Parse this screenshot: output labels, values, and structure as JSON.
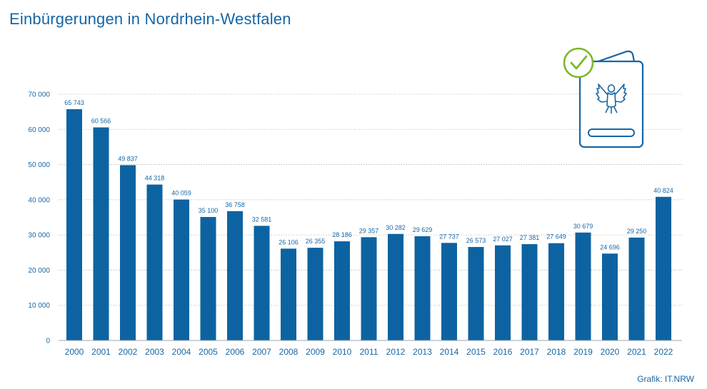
{
  "title": "Einbürgerungen in Nordrhein-Westfalen",
  "credit": "Grafik: IT.NRW",
  "colors": {
    "bar": "#0d63a1",
    "text": "#1666a5",
    "grid": "#b4b4b4",
    "icon": "#1666a5",
    "check": "#7ab929"
  },
  "icon": "passport-with-eagle-and-checkmark-icon",
  "chart_data": {
    "type": "bar",
    "title": "Einbürgerungen in Nordrhein-Westfalen",
    "xlabel": "",
    "ylabel": "",
    "ylim": [
      0,
      70000
    ],
    "yticks": [
      0,
      10000,
      20000,
      30000,
      40000,
      50000,
      60000,
      70000
    ],
    "ytick_labels": [
      "0",
      "10 000",
      "20 000",
      "30 000",
      "40 000",
      "50 000",
      "60 000",
      "70 000"
    ],
    "grid": "horizontal dotted",
    "categories": [
      "2000",
      "2001",
      "2002",
      "2003",
      "2004",
      "2005",
      "2006",
      "2007",
      "2008",
      "2009",
      "2010",
      "2011",
      "2012",
      "2013",
      "2014",
      "2015",
      "2016",
      "2017",
      "2018",
      "2019",
      "2020",
      "2021",
      "2022"
    ],
    "values": [
      65743,
      60566,
      49837,
      44318,
      40059,
      35100,
      36758,
      32581,
      26106,
      26355,
      28186,
      29357,
      30282,
      29629,
      27737,
      26573,
      27027,
      27381,
      27649,
      30679,
      24696,
      29250,
      40824
    ],
    "value_labels": [
      "65 743",
      "60 566",
      "49 837",
      "44 318",
      "40 059",
      "35 100",
      "36 758",
      "32 581",
      "26 106",
      "26 355",
      "28 186",
      "29 357",
      "30 282",
      "29 629",
      "27 737",
      "26 573",
      "27 027",
      "27 381",
      "27 649",
      "30 679",
      "24 696",
      "29 250",
      "40 824"
    ]
  }
}
